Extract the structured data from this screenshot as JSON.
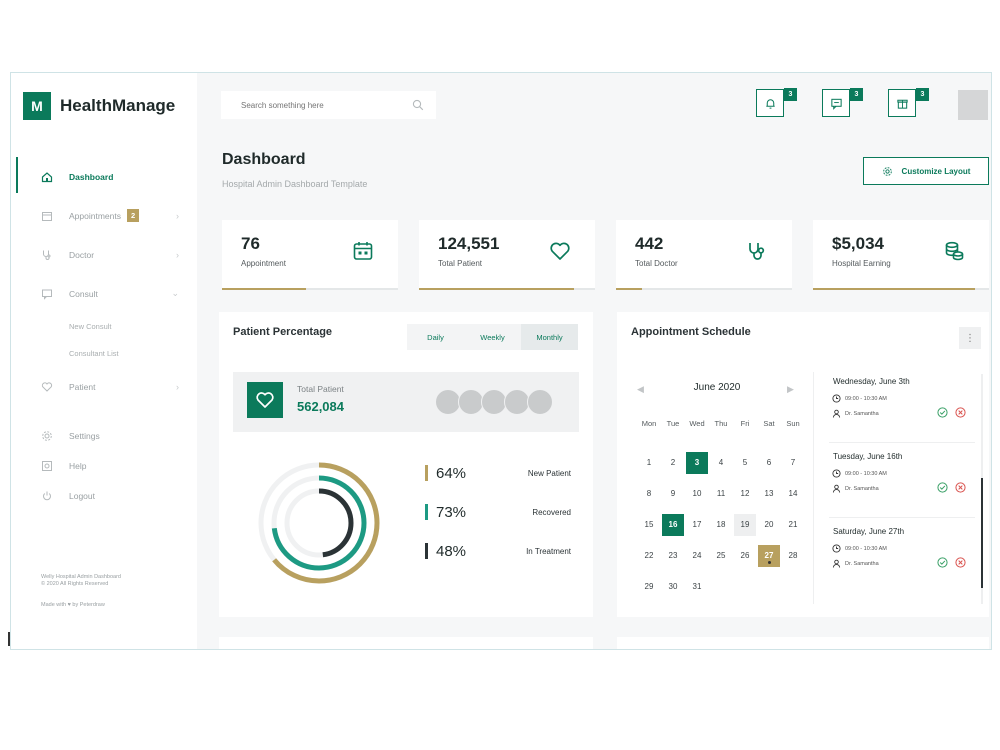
{
  "app": {
    "logo_letter": "M",
    "name": "HealthManage"
  },
  "search": {
    "placeholder": "Search something here"
  },
  "topbar": {
    "notifications_count": "3",
    "messages_count": "3",
    "gifts_count": "3"
  },
  "sidebar": {
    "items": [
      {
        "label": "Dashboard",
        "icon": "home-icon",
        "active": true
      },
      {
        "label": "Appointments",
        "icon": "calendar-icon",
        "badge": "2"
      },
      {
        "label": "Doctor",
        "icon": "stethoscope-icon"
      },
      {
        "label": "Consult",
        "icon": "chat-icon",
        "sub": [
          "New Consult",
          "Consultant List"
        ]
      },
      {
        "label": "Patient",
        "icon": "heart-icon"
      }
    ],
    "secondary": [
      {
        "label": "Settings",
        "icon": "gear-icon"
      },
      {
        "label": "Help",
        "icon": "help-icon"
      },
      {
        "label": "Logout",
        "icon": "power-icon"
      }
    ],
    "footer_line1": "Welly Hospital Admin Dashboard",
    "footer_line2": "© 2020 All Rights Reserved",
    "footer_made": "Made with ♥ by Peterdraw"
  },
  "header": {
    "title": "Dashboard",
    "subtitle": "Hospital Admin Dashboard Template",
    "customize_label": "Customize Layout"
  },
  "stats": [
    {
      "value": "76",
      "label": "Appointment",
      "icon": "calendar-icon",
      "progress": 0.48
    },
    {
      "value": "124,551",
      "label": "Total Patient",
      "icon": "heart-icon",
      "progress": 0.88
    },
    {
      "value": "442",
      "label": "Total Doctor",
      "icon": "stethoscope-icon",
      "progress": 0.15
    },
    {
      "value": "$5,034",
      "label": "Hospital Earning",
      "icon": "coins-icon",
      "progress": 0.92
    }
  ],
  "patient_percentage": {
    "title": "Patient Percentage",
    "tabs": [
      "Daily",
      "Weekly",
      "Monthly"
    ],
    "active_tab": "Monthly",
    "total_label": "Total Patient",
    "total_value": "562,084",
    "legend": [
      {
        "pct": "64%",
        "label": "New Patient",
        "color": "#b8a05f",
        "value": 0.64
      },
      {
        "pct": "73%",
        "label": "Recovered",
        "color": "#1d9a83",
        "value": 0.73
      },
      {
        "pct": "48%",
        "label": "In Treatment",
        "color": "#2b3336",
        "value": 0.48
      }
    ]
  },
  "schedule": {
    "title": "Appointment Schedule",
    "more": "⋮",
    "month": "June 2020",
    "prev": "◀",
    "next": "▶",
    "weekdays": [
      "Mon",
      "Tue",
      "Wed",
      "Thu",
      "Fri",
      "Sat",
      "Sun"
    ],
    "days": [
      "1",
      "2",
      "3",
      "4",
      "5",
      "6",
      "7",
      "8",
      "9",
      "10",
      "11",
      "12",
      "13",
      "14",
      "15",
      "16",
      "17",
      "18",
      "19",
      "20",
      "21",
      "22",
      "23",
      "24",
      "25",
      "26",
      "27",
      "28",
      "29",
      "30",
      "31"
    ],
    "selected_days": [
      "3",
      "16"
    ],
    "highlight_day": "19",
    "gold_day": "27",
    "appointments": [
      {
        "day": "Wednesday, June 3th",
        "time": "09:00 - 10:30 AM",
        "doctor": "Dr. Samantha"
      },
      {
        "day": "Tuesday,  June 16th",
        "time": "09:00 - 10:30 AM",
        "doctor": "Dr. Samantha"
      },
      {
        "day": "Saturday, June 27th",
        "time": "09:00 - 10:30 AM",
        "doctor": "Dr. Samantha"
      }
    ]
  }
}
